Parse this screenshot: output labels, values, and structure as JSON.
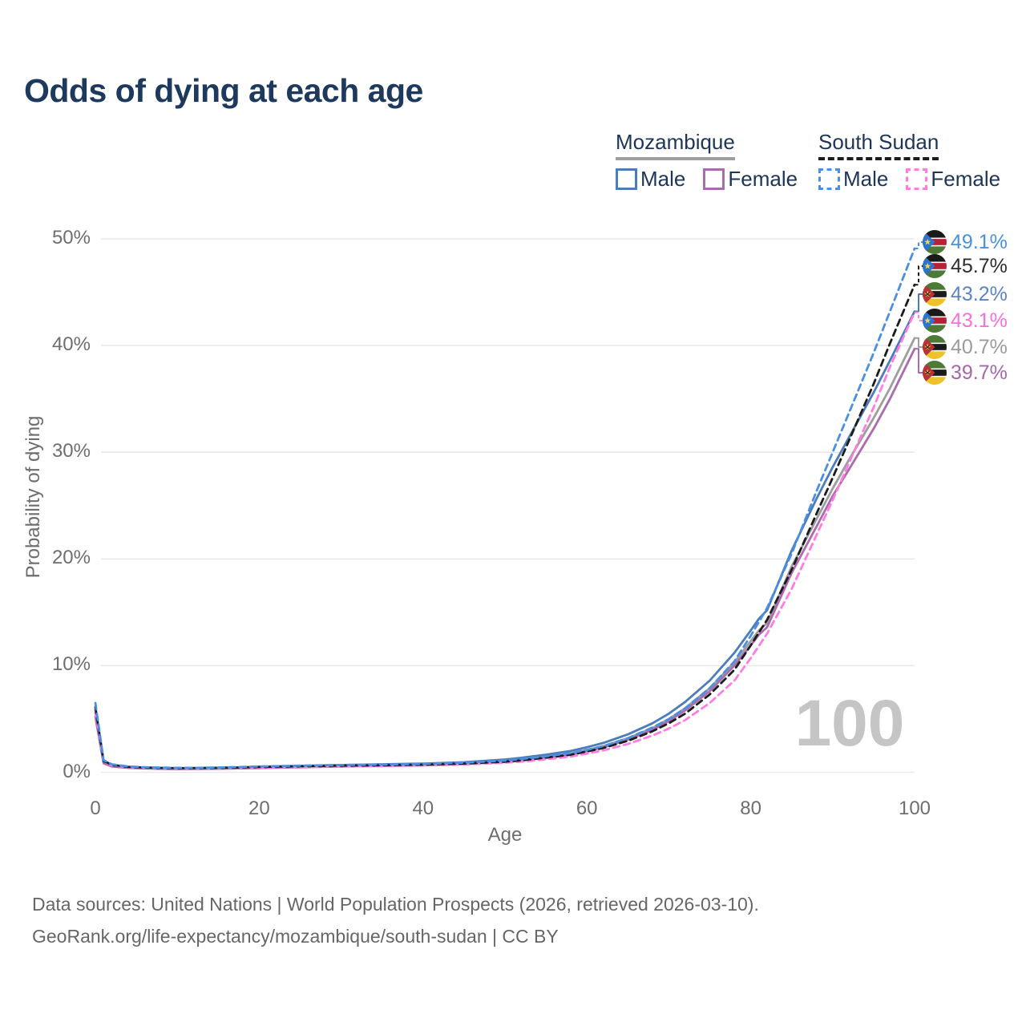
{
  "title": "Odds of dying at each age",
  "watermark": "100",
  "footer": {
    "line1": "Data sources: United Nations | World Population Prospects (2026, retrieved 2026-03-10).",
    "line2": "GeoRank.org/life-expectancy/mozambique/south-sudan | CC BY"
  },
  "legend": {
    "groups": [
      {
        "country": "Mozambique",
        "series_id": "mz_both",
        "items": [
          {
            "label": "Male",
            "series_id": "mz_male"
          },
          {
            "label": "Female",
            "series_id": "mz_female"
          }
        ]
      },
      {
        "country": "South Sudan",
        "series_id": "ss_both",
        "items": [
          {
            "label": "Male",
            "series_id": "ss_male"
          },
          {
            "label": "Female",
            "series_id": "ss_female"
          }
        ]
      }
    ]
  },
  "chart_data": {
    "type": "line",
    "title": "Odds of dying at each age",
    "xlabel": "Age",
    "ylabel": "Probability of dying",
    "xlim": [
      0,
      100
    ],
    "ylim": [
      0,
      50
    ],
    "grid": "horizontal",
    "xticks": {
      "values": [
        0,
        20,
        40,
        60,
        80,
        100
      ],
      "labels": [
        "0",
        "20",
        "40",
        "60",
        "80",
        "100"
      ]
    },
    "yticks": {
      "values": [
        0,
        10,
        20,
        30,
        40,
        50
      ],
      "labels": [
        "0%",
        "10%",
        "20%",
        "30%",
        "40%",
        "50%"
      ]
    },
    "legend_position": "top-right",
    "watermark_age": "100",
    "draw_order": [
      "mz_both",
      "mz_female",
      "mz_male",
      "ss_female",
      "ss_both",
      "ss_male"
    ],
    "end_label_order": [
      "ss_male",
      "ss_both",
      "mz_male",
      "ss_female",
      "mz_both",
      "mz_female"
    ],
    "series": [
      {
        "id": "ss_male",
        "name": "South Sudan Male",
        "country": "South Sudan",
        "flag": "south-sudan",
        "sex": "Male",
        "line": "dashed",
        "color": "#4a90e2",
        "end_value": 49.1,
        "end_label": "49.1%",
        "label_color": "#4a90e2",
        "points": [
          [
            0,
            6.5
          ],
          [
            1,
            1.15
          ],
          [
            2,
            0.75
          ],
          [
            4,
            0.55
          ],
          [
            6,
            0.48
          ],
          [
            8,
            0.44
          ],
          [
            10,
            0.42
          ],
          [
            12,
            0.42
          ],
          [
            15,
            0.45
          ],
          [
            18,
            0.5
          ],
          [
            20,
            0.55
          ],
          [
            25,
            0.62
          ],
          [
            30,
            0.68
          ],
          [
            35,
            0.72
          ],
          [
            40,
            0.78
          ],
          [
            45,
            0.9
          ],
          [
            50,
            1.1
          ],
          [
            52,
            1.25
          ],
          [
            55,
            1.5
          ],
          [
            58,
            1.8
          ],
          [
            60,
            2.1
          ],
          [
            62,
            2.45
          ],
          [
            65,
            3.2
          ],
          [
            68,
            4.2
          ],
          [
            70,
            5.0
          ],
          [
            72,
            6.0
          ],
          [
            75,
            7.9
          ],
          [
            78,
            10.4
          ],
          [
            80,
            12.8
          ],
          [
            82,
            15.4
          ],
          [
            85,
            20.5
          ],
          [
            88,
            26.3
          ],
          [
            90,
            30.0
          ],
          [
            92,
            33.7
          ],
          [
            95,
            39.3
          ],
          [
            97,
            43.2
          ],
          [
            100,
            49.1
          ]
        ]
      },
      {
        "id": "ss_both",
        "name": "South Sudan Both sexes",
        "country": "South Sudan",
        "flag": "south-sudan",
        "sex": "Both",
        "line": "dashed",
        "color": "#1c1c1c",
        "end_value": 45.7,
        "end_label": "45.7%",
        "label_color": "#2d2d2d",
        "points": [
          [
            0,
            6.1
          ],
          [
            1,
            1.08
          ],
          [
            2,
            0.7
          ],
          [
            4,
            0.51
          ],
          [
            6,
            0.45
          ],
          [
            8,
            0.41
          ],
          [
            10,
            0.39
          ],
          [
            12,
            0.4
          ],
          [
            15,
            0.42
          ],
          [
            18,
            0.46
          ],
          [
            20,
            0.5
          ],
          [
            25,
            0.57
          ],
          [
            30,
            0.62
          ],
          [
            35,
            0.66
          ],
          [
            40,
            0.71
          ],
          [
            45,
            0.82
          ],
          [
            50,
            1.0
          ],
          [
            52,
            1.13
          ],
          [
            55,
            1.38
          ],
          [
            58,
            1.65
          ],
          [
            60,
            1.95
          ],
          [
            62,
            2.28
          ],
          [
            65,
            2.95
          ],
          [
            68,
            3.85
          ],
          [
            70,
            4.6
          ],
          [
            72,
            5.5
          ],
          [
            75,
            7.3
          ],
          [
            78,
            9.6
          ],
          [
            80,
            11.9
          ],
          [
            82,
            14.3
          ],
          [
            85,
            19.0
          ],
          [
            88,
            24.2
          ],
          [
            90,
            27.6
          ],
          [
            92,
            31.1
          ],
          [
            95,
            36.4
          ],
          [
            97,
            40.2
          ],
          [
            100,
            45.7
          ]
        ]
      },
      {
        "id": "mz_male",
        "name": "Mozambique Male",
        "country": "Mozambique",
        "flag": "mozambique",
        "sex": "Male",
        "line": "solid",
        "color": "#4d7cba",
        "end_value": 43.2,
        "end_label": "43.2%",
        "label_color": "#5b84c8",
        "points": [
          [
            0,
            5.9
          ],
          [
            1,
            1.0
          ],
          [
            2,
            0.65
          ],
          [
            4,
            0.48
          ],
          [
            6,
            0.42
          ],
          [
            8,
            0.38
          ],
          [
            10,
            0.36
          ],
          [
            12,
            0.37
          ],
          [
            15,
            0.4
          ],
          [
            18,
            0.46
          ],
          [
            20,
            0.52
          ],
          [
            25,
            0.6
          ],
          [
            30,
            0.68
          ],
          [
            35,
            0.75
          ],
          [
            40,
            0.82
          ],
          [
            45,
            0.95
          ],
          [
            50,
            1.2
          ],
          [
            52,
            1.36
          ],
          [
            55,
            1.65
          ],
          [
            58,
            2.0
          ],
          [
            60,
            2.35
          ],
          [
            62,
            2.75
          ],
          [
            65,
            3.55
          ],
          [
            68,
            4.6
          ],
          [
            70,
            5.5
          ],
          [
            72,
            6.6
          ],
          [
            75,
            8.6
          ],
          [
            78,
            11.2
          ],
          [
            80,
            13.3
          ],
          [
            81,
            14.4
          ],
          [
            82,
            15.2
          ],
          [
            85,
            20.8
          ],
          [
            88,
            25.6
          ],
          [
            90,
            28.6
          ],
          [
            92,
            31.4
          ],
          [
            95,
            35.6
          ],
          [
            97,
            38.6
          ],
          [
            100,
            43.2
          ]
        ]
      },
      {
        "id": "ss_female",
        "name": "South Sudan Female",
        "country": "South Sudan",
        "flag": "south-sudan",
        "sex": "Female",
        "line": "dashed",
        "color": "#ff7de2",
        "end_value": 43.1,
        "end_label": "43.1%",
        "label_color": "#fb6ede",
        "points": [
          [
            0,
            5.7
          ],
          [
            1,
            1.0
          ],
          [
            2,
            0.65
          ],
          [
            4,
            0.48
          ],
          [
            6,
            0.42
          ],
          [
            8,
            0.38
          ],
          [
            10,
            0.36
          ],
          [
            12,
            0.36
          ],
          [
            15,
            0.38
          ],
          [
            18,
            0.41
          ],
          [
            20,
            0.44
          ],
          [
            25,
            0.5
          ],
          [
            30,
            0.55
          ],
          [
            35,
            0.58
          ],
          [
            40,
            0.63
          ],
          [
            45,
            0.73
          ],
          [
            50,
            0.9
          ],
          [
            52,
            1.0
          ],
          [
            55,
            1.22
          ],
          [
            58,
            1.47
          ],
          [
            60,
            1.75
          ],
          [
            62,
            2.05
          ],
          [
            65,
            2.65
          ],
          [
            68,
            3.45
          ],
          [
            70,
            4.1
          ],
          [
            72,
            4.9
          ],
          [
            75,
            6.5
          ],
          [
            78,
            8.6
          ],
          [
            80,
            10.7
          ],
          [
            82,
            13.0
          ],
          [
            85,
            17.2
          ],
          [
            88,
            22.2
          ],
          [
            90,
            25.5
          ],
          [
            92,
            29.0
          ],
          [
            95,
            34.2
          ],
          [
            97,
            38.0
          ],
          [
            100,
            43.1
          ]
        ]
      },
      {
        "id": "mz_both",
        "name": "Mozambique Both sexes",
        "country": "Mozambique",
        "flag": "mozambique",
        "sex": "Both",
        "line": "solid",
        "color": "#9e9e9e",
        "end_value": 40.7,
        "end_label": "40.7%",
        "label_color": "#9b9b9b",
        "points": [
          [
            0,
            5.55
          ],
          [
            1,
            0.93
          ],
          [
            2,
            0.6
          ],
          [
            4,
            0.44
          ],
          [
            6,
            0.39
          ],
          [
            8,
            0.35
          ],
          [
            10,
            0.33
          ],
          [
            12,
            0.34
          ],
          [
            15,
            0.37
          ],
          [
            18,
            0.42
          ],
          [
            20,
            0.46
          ],
          [
            25,
            0.53
          ],
          [
            30,
            0.6
          ],
          [
            35,
            0.66
          ],
          [
            40,
            0.72
          ],
          [
            45,
            0.84
          ],
          [
            50,
            1.05
          ],
          [
            52,
            1.2
          ],
          [
            55,
            1.45
          ],
          [
            58,
            1.77
          ],
          [
            60,
            2.1
          ],
          [
            62,
            2.46
          ],
          [
            65,
            3.2
          ],
          [
            68,
            4.15
          ],
          [
            70,
            5.0
          ],
          [
            72,
            6.0
          ],
          [
            75,
            7.9
          ],
          [
            78,
            10.3
          ],
          [
            80,
            12.3
          ],
          [
            81,
            13.3
          ],
          [
            82,
            14.0
          ],
          [
            85,
            19.3
          ],
          [
            88,
            23.7
          ],
          [
            90,
            26.6
          ],
          [
            92,
            29.3
          ],
          [
            95,
            33.2
          ],
          [
            97,
            36.0
          ],
          [
            100,
            40.7
          ]
        ]
      },
      {
        "id": "mz_female",
        "name": "Mozambique Female",
        "country": "Mozambique",
        "flag": "mozambique",
        "sex": "Female",
        "line": "solid",
        "color": "#ab6cae",
        "end_value": 39.7,
        "end_label": "39.7%",
        "label_color": "#a368a6",
        "points": [
          [
            0,
            5.2
          ],
          [
            1,
            0.85
          ],
          [
            2,
            0.55
          ],
          [
            4,
            0.41
          ],
          [
            6,
            0.36
          ],
          [
            8,
            0.32
          ],
          [
            10,
            0.3
          ],
          [
            12,
            0.31
          ],
          [
            15,
            0.33
          ],
          [
            18,
            0.37
          ],
          [
            20,
            0.4
          ],
          [
            25,
            0.47
          ],
          [
            30,
            0.54
          ],
          [
            35,
            0.6
          ],
          [
            40,
            0.66
          ],
          [
            45,
            0.78
          ],
          [
            50,
            0.98
          ],
          [
            52,
            1.11
          ],
          [
            55,
            1.35
          ],
          [
            58,
            1.64
          ],
          [
            60,
            1.98
          ],
          [
            62,
            2.33
          ],
          [
            65,
            3.05
          ],
          [
            68,
            3.98
          ],
          [
            70,
            4.8
          ],
          [
            72,
            5.8
          ],
          [
            75,
            7.6
          ],
          [
            78,
            10.0
          ],
          [
            80,
            11.9
          ],
          [
            81,
            12.9
          ],
          [
            82,
            13.6
          ],
          [
            85,
            18.7
          ],
          [
            88,
            23.0
          ],
          [
            90,
            25.9
          ],
          [
            92,
            28.4
          ],
          [
            95,
            32.2
          ],
          [
            97,
            35.0
          ],
          [
            100,
            39.7
          ]
        ]
      }
    ]
  }
}
